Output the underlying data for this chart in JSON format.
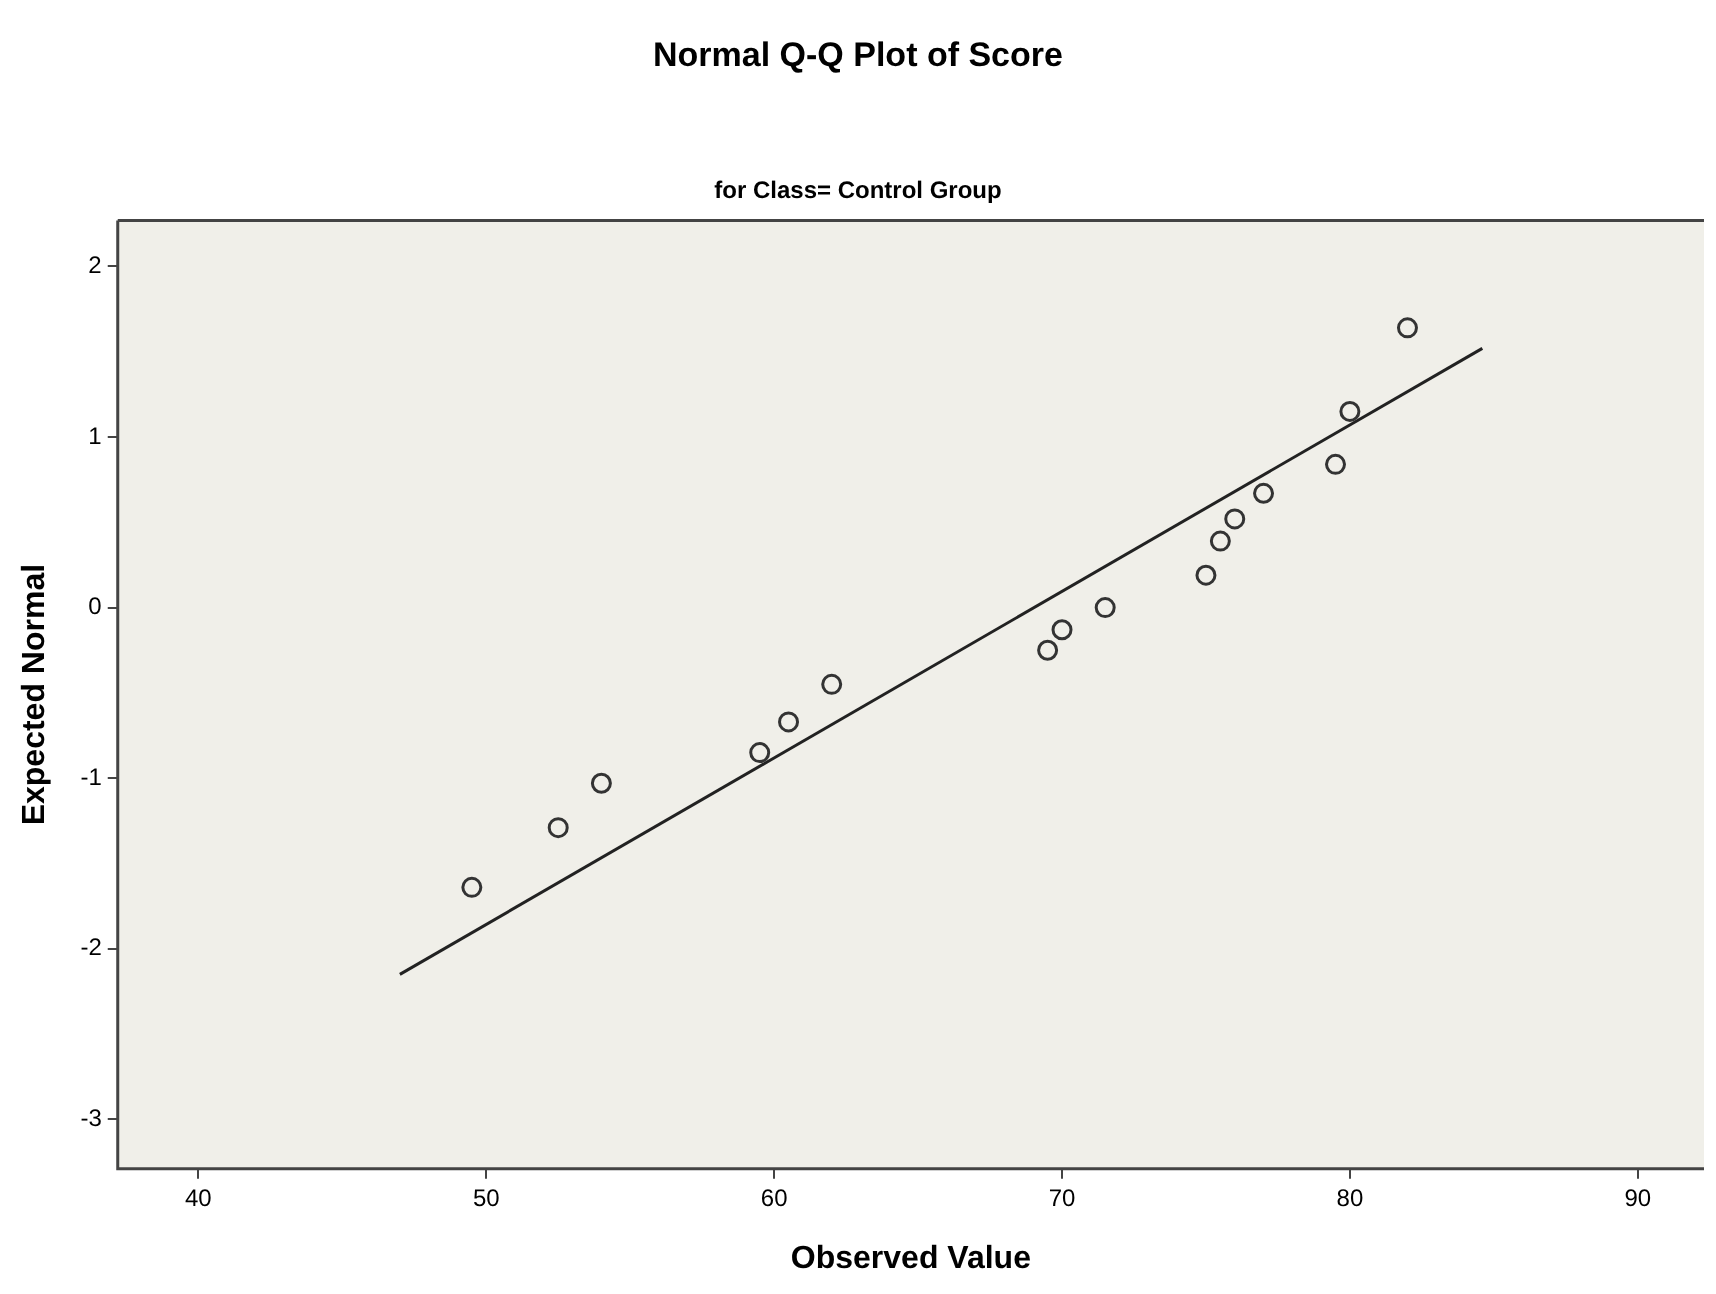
{
  "chart_data": {
    "type": "scatter",
    "title": "Normal Q-Q Plot of Score",
    "subtitle": "for Class= Control Group",
    "xlabel": "Observed Value",
    "ylabel": "Expected Normal",
    "xlim": [
      37.2,
      92.3
    ],
    "xticks": [
      40,
      50,
      60,
      70,
      80,
      90
    ],
    "ylim": [
      -3.29,
      2.27
    ],
    "yticks": [
      -3,
      -2,
      -1,
      0,
      1,
      2
    ],
    "grid": false,
    "legend": false,
    "marker": "circle",
    "series": [
      {
        "color": "#333333",
        "x": [
          49.5,
          52.5,
          54,
          59.5,
          60.5,
          62,
          69.5,
          70,
          71.5,
          75,
          75.5,
          76,
          77,
          79.5,
          80,
          82
        ],
        "values": [
          -1.64,
          -1.29,
          -1.03,
          -0.85,
          -0.67,
          -0.45,
          -0.25,
          -0.13,
          0,
          0.19,
          0.39,
          0.52,
          0.67,
          0.84,
          1.15,
          1.64
        ]
      },
      {
        "type": "line",
        "color": "#222222",
        "marker": "none",
        "x": [
          47,
          84.6
        ],
        "values": [
          -2.15,
          1.52
        ]
      }
    ]
  }
}
